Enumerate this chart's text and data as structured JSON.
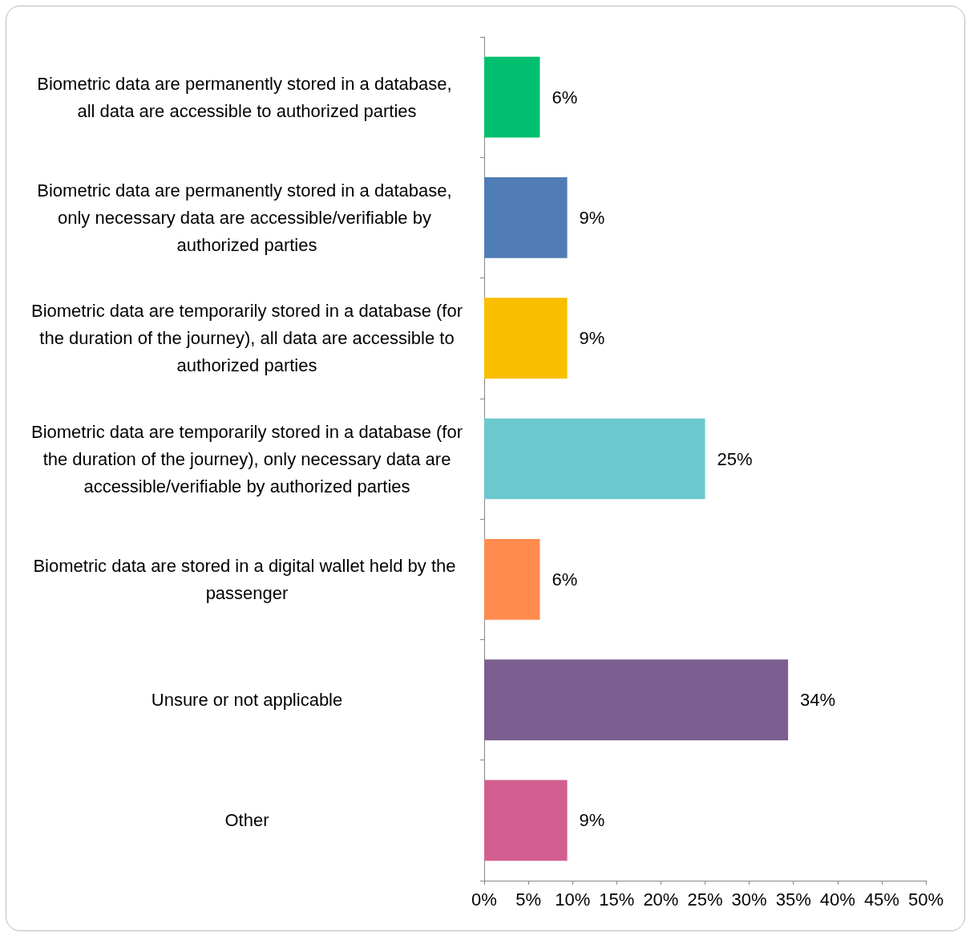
{
  "chart_data": {
    "type": "bar",
    "orientation": "horizontal",
    "categories": [
      "Biometric data are permanently stored in a database, all data are accessible to authorized parties",
      "Biometric data are permanently stored in a database, only necessary data are accessible/verifiable by authorized parties",
      "Biometric data are temporarily stored in a database (for the duration of the journey), all data are accessible to authorized parties",
      "Biometric data are temporarily stored in a database (for the duration of the journey), only necessary data are accessible/verifiable by authorized parties",
      "Biometric data are stored in a digital wallet held by the passenger",
      "Unsure or not applicable",
      "Other"
    ],
    "values": [
      6.3,
      9.4,
      9.4,
      25,
      6.3,
      34.4,
      9.4
    ],
    "value_labels": [
      "6%",
      "9%",
      "9%",
      "25%",
      "6%",
      "34%",
      "9%"
    ],
    "colors": [
      "#00bf6f",
      "#507cb6",
      "#f9be00",
      "#6bc8cd",
      "#ff8b4f",
      "#7d5e90",
      "#d25f90"
    ],
    "xlim": [
      0,
      50
    ],
    "xticks": [
      {
        "value": 0,
        "label": "0%"
      },
      {
        "value": 5,
        "label": "5%"
      },
      {
        "value": 10,
        "label": "10%"
      },
      {
        "value": 15,
        "label": "15%"
      },
      {
        "value": 20,
        "label": "20%"
      },
      {
        "value": 25,
        "label": "25%"
      },
      {
        "value": 30,
        "label": "30%"
      },
      {
        "value": 35,
        "label": "35%"
      },
      {
        "value": 40,
        "label": "40%"
      },
      {
        "value": 45,
        "label": "45%"
      },
      {
        "value": 50,
        "label": "50%"
      }
    ],
    "grid": false
  }
}
